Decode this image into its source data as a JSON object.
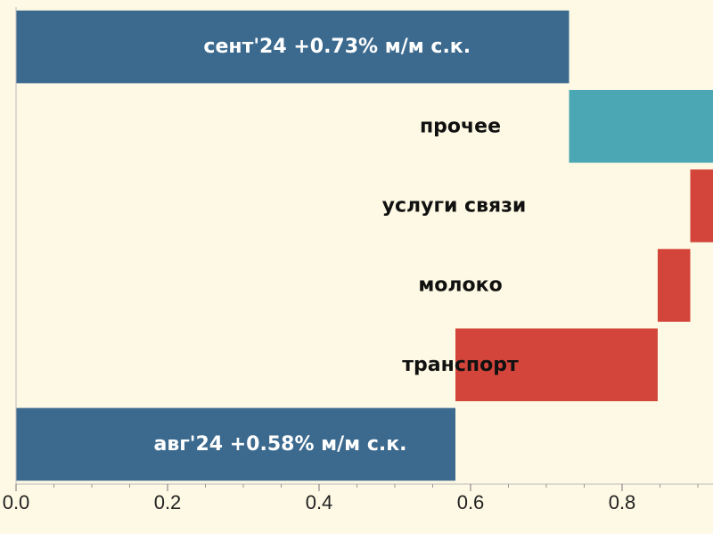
{
  "chart_data": {
    "type": "bar",
    "orientation": "horizontal",
    "subtype": "waterfall",
    "xlim": [
      0.0,
      0.92
    ],
    "x_ticks": [
      "0.0",
      "0.2",
      "0.4",
      "0.6",
      "0.8"
    ],
    "x_tick_values": [
      0.0,
      0.2,
      0.4,
      0.6,
      0.8
    ],
    "bars": [
      {
        "label": "сент'24 +0.73% м/м с.к.",
        "start": 0.0,
        "end": 0.73,
        "kind": "total",
        "color": "#3c6a8f",
        "label_color": "#ffffff"
      },
      {
        "label": "прочее",
        "start": 0.73,
        "end": 0.92,
        "kind": "increase",
        "color": "#4ba7b4",
        "label_color": "#111111"
      },
      {
        "label": "услуги связи",
        "start": 0.89,
        "end": 0.92,
        "kind": "decrease",
        "color": "#d3453a",
        "label_color": "#111111"
      },
      {
        "label": "молоко",
        "start": 0.847,
        "end": 0.89,
        "kind": "decrease",
        "color": "#d3453a",
        "label_color": "#111111"
      },
      {
        "label": "транспорт",
        "start": 0.58,
        "end": 0.847,
        "kind": "decrease",
        "color": "#d3453a",
        "label_color": "#111111"
      },
      {
        "label": "авг'24 +0.58% м/м с.к.",
        "start": 0.0,
        "end": 0.58,
        "kind": "total",
        "color": "#3c6a8f",
        "label_color": "#ffffff"
      }
    ],
    "background": "#fdf9e4",
    "grid": false,
    "legend": "none"
  }
}
